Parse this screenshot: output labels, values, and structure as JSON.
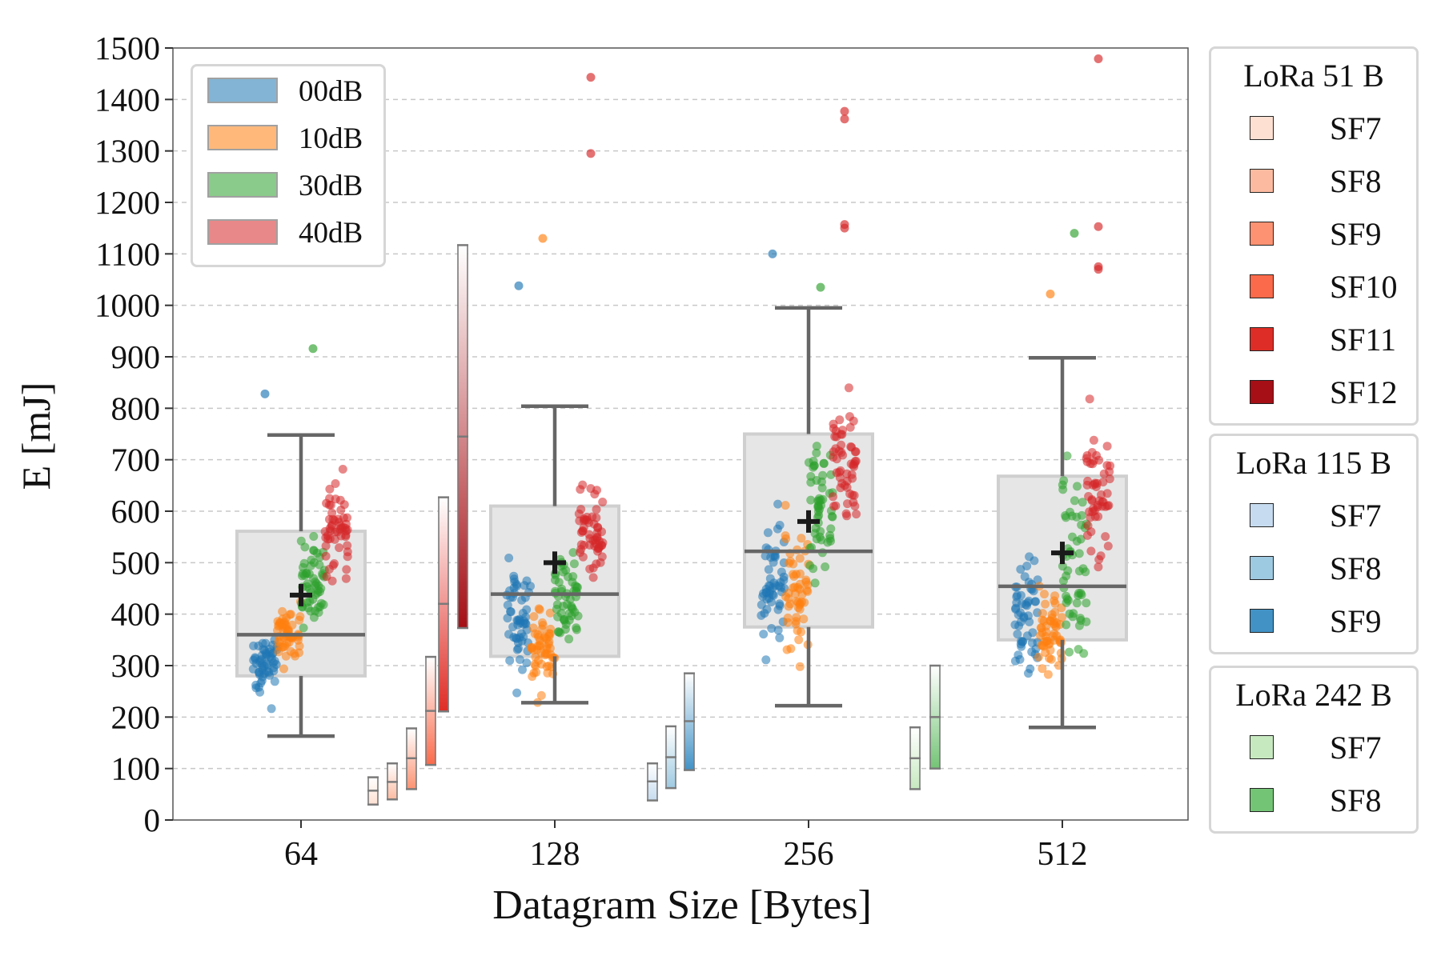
{
  "chart_data": {
    "type": "box",
    "xlabel": "Datagram Size [Bytes]",
    "ylabel": "E [mJ]",
    "categories": [
      "64",
      "128",
      "256",
      "512"
    ],
    "ylim": [
      0,
      1500
    ],
    "yticks": [
      0,
      100,
      200,
      300,
      400,
      500,
      600,
      700,
      800,
      900,
      1000,
      1100,
      1200,
      1300,
      1400,
      1500
    ],
    "grid": "horizontal dashed",
    "boxes": [
      {
        "category": "64",
        "whisker_low": 163,
        "q1": 280,
        "median": 360,
        "q3": 561,
        "whisker_high": 748,
        "mean": 437
      },
      {
        "category": "128",
        "whisker_low": 228,
        "q1": 318,
        "median": 439,
        "q3": 610,
        "whisker_high": 804,
        "mean": 500
      },
      {
        "category": "256",
        "whisker_low": 222,
        "q1": 375,
        "median": 522,
        "q3": 750,
        "whisker_high": 995,
        "mean": 580
      },
      {
        "category": "512",
        "whisker_low": 180,
        "q1": 350,
        "median": 454,
        "q3": 668,
        "whisker_high": 898,
        "mean": 519
      }
    ],
    "snr_legend": {
      "placement": "upper-left",
      "items": [
        {
          "label": "00dB",
          "color": "#1f77b4"
        },
        {
          "label": "10dB",
          "color": "#ff7f0e"
        },
        {
          "label": "30dB",
          "color": "#2ca02c"
        },
        {
          "label": "40dB",
          "color": "#d62728"
        }
      ]
    },
    "lora_groups": [
      {
        "title": "LoRa 51 B",
        "items": [
          {
            "label": "SF7",
            "color": "#fee0d2",
            "low": 30,
            "mid": 57,
            "high": 83
          },
          {
            "label": "SF8",
            "color": "#fcbba1",
            "low": 40,
            "mid": 74,
            "high": 110
          },
          {
            "label": "SF9",
            "color": "#fc9272",
            "low": 60,
            "mid": 120,
            "high": 178
          },
          {
            "label": "SF10",
            "color": "#fb6a4a",
            "low": 107,
            "mid": 212,
            "high": 317
          },
          {
            "label": "SF11",
            "color": "#de2d26",
            "low": 211,
            "mid": 420,
            "high": 627
          },
          {
            "label": "SF12",
            "color": "#a50f15",
            "low": 373,
            "mid": 745,
            "high": 1117
          }
        ]
      },
      {
        "title": "LoRa 115 B",
        "items": [
          {
            "label": "SF7",
            "color": "#c6dbef",
            "low": 38,
            "mid": 75,
            "high": 110
          },
          {
            "label": "SF8",
            "color": "#9ecae1",
            "low": 62,
            "mid": 122,
            "high": 182
          },
          {
            "label": "SF9",
            "color": "#4292c6",
            "low": 97,
            "mid": 192,
            "high": 285
          }
        ]
      },
      {
        "title": "LoRa 242 B",
        "items": [
          {
            "label": "SF7",
            "color": "#c7e9c0",
            "low": 60,
            "mid": 120,
            "high": 180
          },
          {
            "label": "SF8",
            "color": "#74c476",
            "low": 100,
            "mid": 200,
            "high": 300
          }
        ]
      }
    ],
    "outliers": [
      {
        "category": "64",
        "snr": "00dB",
        "y": 828
      },
      {
        "category": "64",
        "snr": "30dB",
        "y": 916
      },
      {
        "category": "128",
        "snr": "00dB",
        "y": 1038
      },
      {
        "category": "128",
        "snr": "10dB",
        "y": 1130
      },
      {
        "category": "128",
        "snr": "40dB",
        "y": 1443
      },
      {
        "category": "128",
        "snr": "40dB",
        "y": 1295
      },
      {
        "category": "256",
        "snr": "00dB",
        "y": 1100
      },
      {
        "category": "256",
        "snr": "30dB",
        "y": 1035
      },
      {
        "category": "256",
        "snr": "40dB",
        "y": 1377
      },
      {
        "category": "256",
        "snr": "40dB",
        "y": 1362
      },
      {
        "category": "256",
        "snr": "40dB",
        "y": 1157
      },
      {
        "category": "256",
        "snr": "40dB",
        "y": 1150
      },
      {
        "category": "512",
        "snr": "10dB",
        "y": 1022
      },
      {
        "category": "512",
        "snr": "30dB",
        "y": 1140
      },
      {
        "category": "512",
        "snr": "40dB",
        "y": 1479
      },
      {
        "category": "512",
        "snr": "40dB",
        "y": 1153
      },
      {
        "category": "512",
        "snr": "40dB",
        "y": 1075
      },
      {
        "category": "512",
        "snr": "40dB",
        "y": 1070
      }
    ]
  }
}
